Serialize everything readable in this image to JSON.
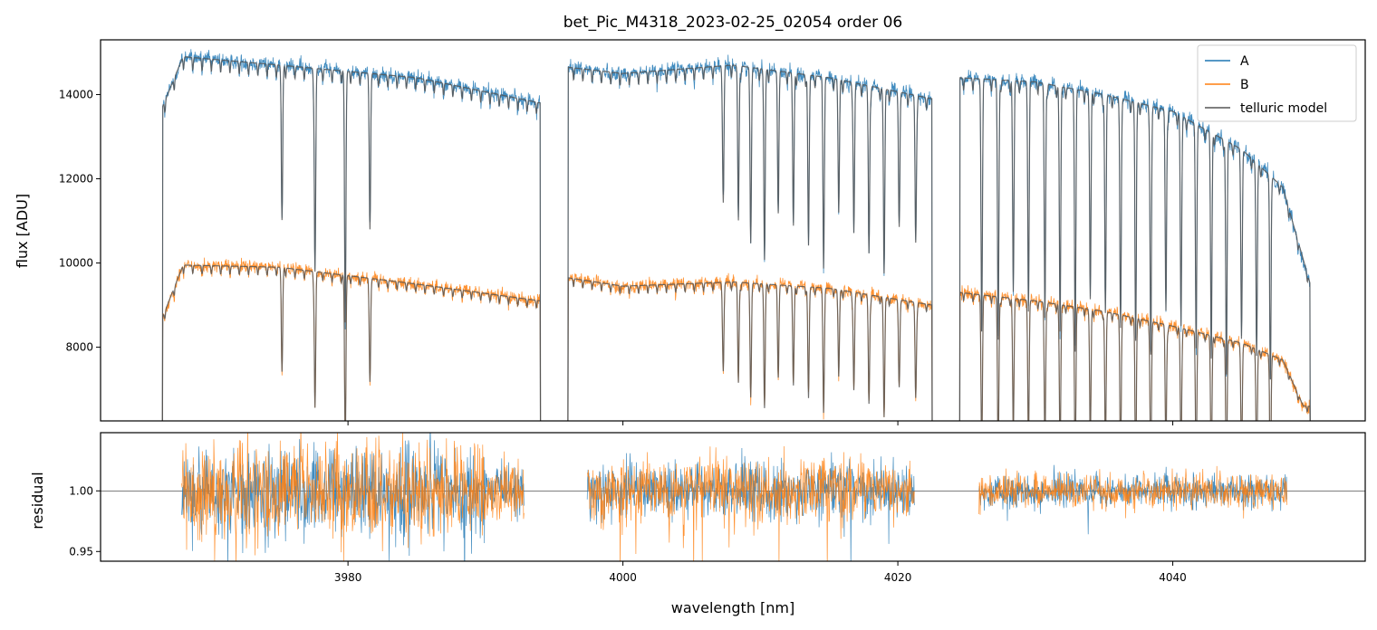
{
  "chart_data": {
    "type": "line",
    "title": "bet_Pic_M4318_2023-02-25_02054  order 06",
    "xlabel": "wavelength [nm]",
    "xlim": [
      3962.0,
      4054.0
    ],
    "xticks": [
      3980,
      4000,
      4020,
      4040
    ],
    "xtick_labels": [
      "3980",
      "4000",
      "4020",
      "4040"
    ],
    "segments": [
      [
        3966.5,
        3994.0
      ],
      [
        3996.0,
        4022.5
      ],
      [
        4024.5,
        4050.0
      ]
    ],
    "residual_segments": [
      [
        3967.9,
        3992.8
      ],
      [
        3997.4,
        4021.2
      ],
      [
        4025.9,
        4048.3
      ]
    ],
    "top_panel": {
      "ylabel": "flux [ADU]",
      "ylim": [
        6250,
        15300
      ],
      "yticks": [
        8000,
        10000,
        12000,
        14000
      ],
      "ytick_labels": [
        "8000",
        "10000",
        "12000",
        "14000"
      ],
      "series": [
        {
          "name": "A",
          "color": "#1f77b4",
          "continuum_nm": [
            3966.5,
            3968,
            3975,
            3985,
            3994,
            3996,
            4000,
            4008,
            4015,
            4022.5,
            4024.5,
            4030,
            4035,
            4040,
            4045,
            4048,
            4050
          ],
          "continuum_adu": [
            13700,
            14900,
            14700,
            14400,
            13800,
            14650,
            14500,
            14700,
            14400,
            13900,
            14400,
            14300,
            14000,
            13600,
            12700,
            11800,
            9500
          ]
        },
        {
          "name": "B",
          "color": "#ff7f0e",
          "continuum_nm": [
            3966.5,
            3968,
            3975,
            3985,
            3994,
            3996,
            4000,
            4008,
            4015,
            4022.5,
            4024.5,
            4030,
            4035,
            4040,
            4045,
            4048,
            4049.5
          ],
          "continuum_adu": [
            8700,
            9950,
            9900,
            9500,
            9100,
            9650,
            9450,
            9550,
            9400,
            9000,
            9300,
            9100,
            8850,
            8500,
            8100,
            7700,
            6600
          ]
        },
        {
          "name": "telluric model",
          "color": "#555555"
        }
      ],
      "absorption_lines_nm": [
        3975.2,
        3977.6,
        3979.8,
        3981.6,
        4007.3,
        4008.4,
        4009.3,
        4010.3,
        4011.3,
        4012.4,
        4013.5,
        4014.6,
        4015.7,
        4016.8,
        4017.9,
        4019.0,
        4020.1,
        4021.3,
        4026.1,
        4027.3,
        4028.4,
        4029.5,
        4030.7,
        4031.8,
        4032.9,
        4034.0,
        4035.1,
        4036.2,
        4037.3,
        4038.4,
        4039.5,
        4040.6,
        4041.7,
        4042.8,
        4043.9,
        4045.0,
        4046.1,
        4047.1
      ]
    },
    "bottom_panel": {
      "ylabel": "residual",
      "ylim": [
        0.942,
        1.048
      ],
      "yticks": [
        0.95,
        1.0
      ],
      "ytick_labels": [
        "0.95",
        "1.00"
      ],
      "reference_line": 1.0
    },
    "legend": {
      "position": "top-right",
      "entries": [
        {
          "label": "A",
          "color": "#1f77b4"
        },
        {
          "label": "B",
          "color": "#ff7f0e"
        },
        {
          "label": "telluric model",
          "color": "#555555"
        }
      ]
    }
  }
}
